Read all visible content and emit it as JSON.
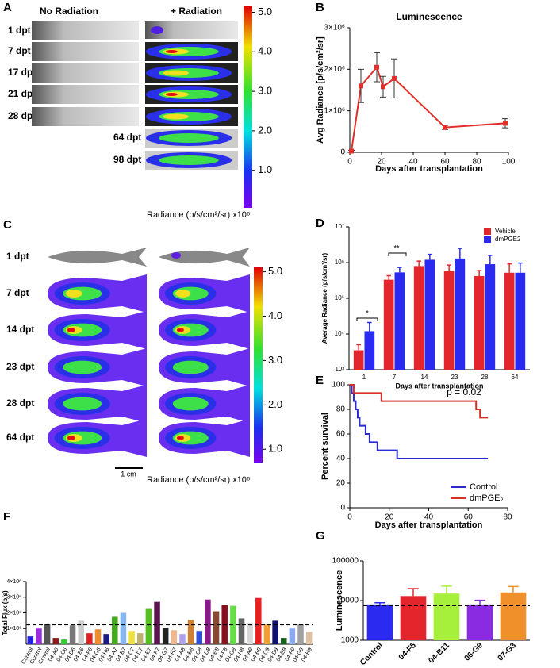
{
  "panel_labels": [
    "A",
    "B",
    "C",
    "D",
    "E",
    "F",
    "G"
  ],
  "panel_a": {
    "headers": [
      "No Radiation",
      "+ Radiation"
    ],
    "rows": [
      "1 dpt",
      "7 dpt",
      "17 dpt",
      "21 dpt",
      "28 dpt",
      "64 dpt",
      "98 dpt"
    ],
    "colorbar_range": [
      0.05,
      5.15
    ],
    "colorbar_ticks": [
      {
        "value": 5,
        "label": "5.0"
      },
      {
        "value": 4,
        "label": "4.0"
      },
      {
        "value": 3,
        "label": "3.0"
      },
      {
        "value": 2,
        "label": "2.0"
      },
      {
        "value": 1,
        "label": "1.0"
      }
    ],
    "colorbar_label": "Radiance (p/s/cm²/sr) x10⁶"
  },
  "panel_c": {
    "rows": [
      "1 dpt",
      "7 dpt",
      "14 dpt",
      "23 dpt",
      "28 dpt",
      "64 dpt"
    ],
    "scale_bar": "1 cm",
    "colorbar_range": [
      0.7,
      5.1
    ],
    "colorbar_ticks": [
      {
        "value": 5,
        "label": "5.0"
      },
      {
        "value": 4,
        "label": "4.0"
      },
      {
        "value": 3,
        "label": "3.0"
      },
      {
        "value": 2,
        "label": "2.0"
      },
      {
        "value": 1,
        "label": "1.0"
      }
    ],
    "colorbar_label": "Radiance (p/s/cm²/sr) x10⁶"
  },
  "chart_data": [
    {
      "type": "line",
      "title": "Luminescence",
      "xlabel": "Days after transplantation",
      "ylabel": "Avg Radiance [p/s/cm²/sr]",
      "x": [
        1,
        7,
        17,
        21,
        28,
        60,
        98
      ],
      "series": [
        {
          "color": "#e0302a",
          "values": [
            30000,
            1600000,
            2050000,
            1580000,
            1780000,
            600000,
            700000
          ],
          "errors": [
            20000,
            400000,
            350000,
            250000,
            470000,
            50000,
            110000
          ]
        }
      ],
      "xlim": [
        0,
        100
      ],
      "xticks": [
        0,
        20,
        40,
        60,
        80,
        100
      ],
      "ylim": [
        0,
        3000000
      ],
      "yticks": [
        0,
        {
          "value": 1000000,
          "label": "1×10⁶"
        },
        {
          "value": 2000000,
          "label": "2×10⁶"
        },
        {
          "value": 3000000,
          "label": "3×10⁶"
        }
      ]
    },
    {
      "type": "bar",
      "xlabel": "Days after transplantation",
      "ylabel": "Average Radiance (p/s/cm²/sr)",
      "categories": [
        "1",
        "7",
        "14",
        "23",
        "28",
        "64"
      ],
      "series": [
        {
          "name": "Vehicle",
          "color": "#e3262b",
          "values": [
            3500,
            330000,
            800000,
            600000,
            420000,
            520000
          ],
          "errors": [
            1500,
            100000,
            300000,
            250000,
            180000,
            400000
          ]
        },
        {
          "name": "dmPGE2",
          "color": "#2a2af0",
          "values": [
            12000,
            530000,
            1200000,
            1300000,
            900000,
            520000
          ],
          "errors": [
            9000,
            200000,
            500000,
            1200000,
            700000,
            450000
          ]
        }
      ],
      "log_y": true,
      "ylim": [
        1000,
        10000000
      ],
      "yticks": [
        {
          "value": 1000,
          "label": "10³"
        },
        {
          "value": 10000,
          "label": "10⁴"
        },
        {
          "value": 100000,
          "label": "10⁵"
        },
        {
          "value": 1000000,
          "label": "10⁶"
        },
        {
          "value": 10000000,
          "label": "10⁷"
        }
      ],
      "legend": "upper right",
      "annotations": [
        "*",
        "**"
      ]
    },
    {
      "type": "line",
      "step": true,
      "xlabel": "Days after transplantation",
      "ylabel": "Percent survival",
      "series": [
        {
          "name": "Control",
          "color": "#2b2bd6",
          "x": [
            0,
            1,
            2,
            3,
            4,
            5,
            8,
            10,
            14,
            24,
            70
          ],
          "values": [
            100,
            93.3,
            86.7,
            80,
            73.3,
            66.7,
            60,
            53.3,
            46.7,
            40,
            40
          ]
        },
        {
          "name": "dmPGE₂",
          "color": "#d9302a",
          "x": [
            0,
            2,
            16,
            64,
            66,
            70
          ],
          "values": [
            100,
            93.3,
            86.7,
            80,
            73.3,
            73.3
          ]
        }
      ],
      "xlim": [
        0,
        80
      ],
      "xticks": [
        0,
        20,
        40,
        60,
        80
      ],
      "ylim": [
        0,
        100
      ],
      "yticks": [
        0,
        20,
        40,
        60,
        80,
        100
      ],
      "legend": "lower right",
      "annotations": [
        "p = 0.02"
      ]
    },
    {
      "type": "bar",
      "ylabel": "Total Flux (p/s)",
      "categories": [
        "Control",
        "Control",
        "Control",
        "04-A6",
        "04-C6",
        "04-D6",
        "04-E6",
        "04-F6",
        "04-G6",
        "04-H6",
        "04-A7",
        "04-B7",
        "04-C7",
        "04-D7",
        "04-E7",
        "04-F7",
        "04-G7",
        "04-H7",
        "04-A8",
        "04-B8",
        "04-C8",
        "04-D8",
        "04-E8",
        "04-F8",
        "04-G8",
        "04-H8",
        "04-A9",
        "04-B9",
        "04-C9",
        "04-D9",
        "04-E9",
        "04-F9",
        "04-G9",
        "04-H9"
      ],
      "values": [
        500000,
        1000000,
        1300000,
        400000,
        300000,
        1200000,
        1500000,
        700000,
        950000,
        650000,
        1750000,
        2000000,
        850000,
        700000,
        2250000,
        2700000,
        1050000,
        900000,
        650000,
        1550000,
        850000,
        2850000,
        2100000,
        2500000,
        2450000,
        1650000,
        1350000,
        2950000,
        1250000,
        1500000,
        400000,
        1000000,
        1300000,
        800000
      ],
      "colors": [
        "#2323e0",
        "#9b2be0",
        "#555555",
        "#8b1a1a",
        "#33cc33",
        "#777777",
        "#cccccc",
        "#e02020",
        "#f08c30",
        "#1a1a80",
        "#44aa22",
        "#88b8f0",
        "#f0e040",
        "#c0b070",
        "#55c020",
        "#5a1450",
        "#222222",
        "#f0b890",
        "#b0a0f0",
        "#d08030",
        "#3050e0",
        "#8a1a8a",
        "#8a4a30",
        "#8a1020",
        "#66dd44",
        "#666666",
        "#d8d8d8",
        "#e82020",
        "#f0a030",
        "#101070",
        "#1a6020",
        "#88a8f0",
        "#a0a0a0",
        "#e0c0a0"
      ],
      "ylim": [
        0,
        4000000
      ],
      "yticks": [
        {
          "value": 1000000,
          "label": "1×10⁶"
        },
        {
          "value": 2000000,
          "label": "2×10⁶"
        },
        {
          "value": 3000000,
          "label": "3×10⁶"
        },
        {
          "value": 4000000,
          "label": "4×10⁶"
        }
      ],
      "reference_line": 1250000
    },
    {
      "type": "bar",
      "ylabel": "Luminescence",
      "categories": [
        "Control",
        "04-F5",
        "04-B11",
        "06-G9",
        "07-G3"
      ],
      "values": [
        8000,
        13000,
        15000,
        8000,
        16000
      ],
      "errors": [
        800,
        7000,
        8000,
        2200,
        6500
      ],
      "colors": [
        "#2a2af0",
        "#e3262b",
        "#a6f03c",
        "#8a2be2",
        "#f0902a"
      ],
      "log_y": true,
      "ylim": [
        1000,
        100000
      ],
      "yticks": [
        1000,
        10000,
        100000
      ],
      "reference_line": 7500
    }
  ]
}
